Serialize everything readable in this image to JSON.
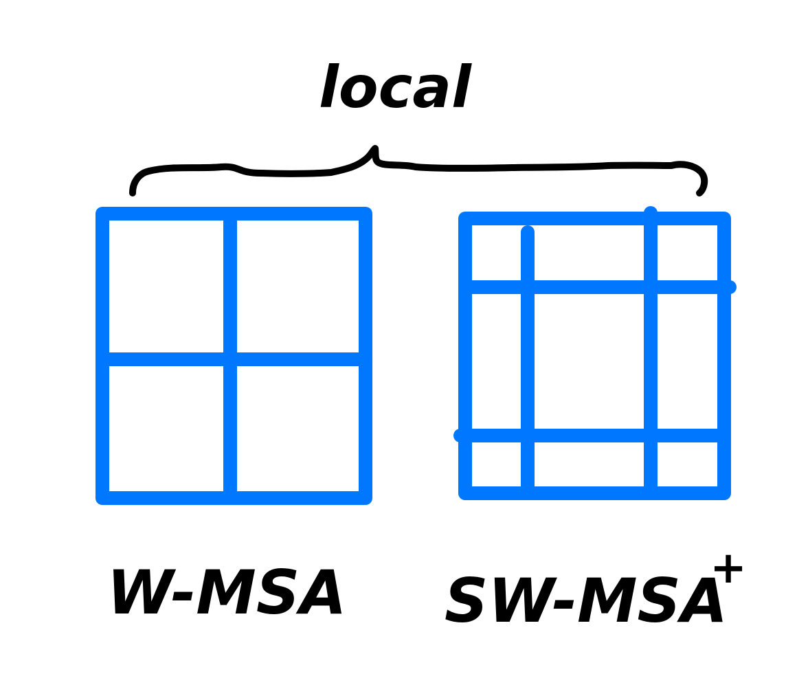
{
  "colors": {
    "grid": "#0077ff",
    "ink": "#000000",
    "background": "#ffffff"
  },
  "labels": {
    "top": "local",
    "left": "W-MSA",
    "right": "SW-MSA",
    "right_superscript": "+"
  }
}
